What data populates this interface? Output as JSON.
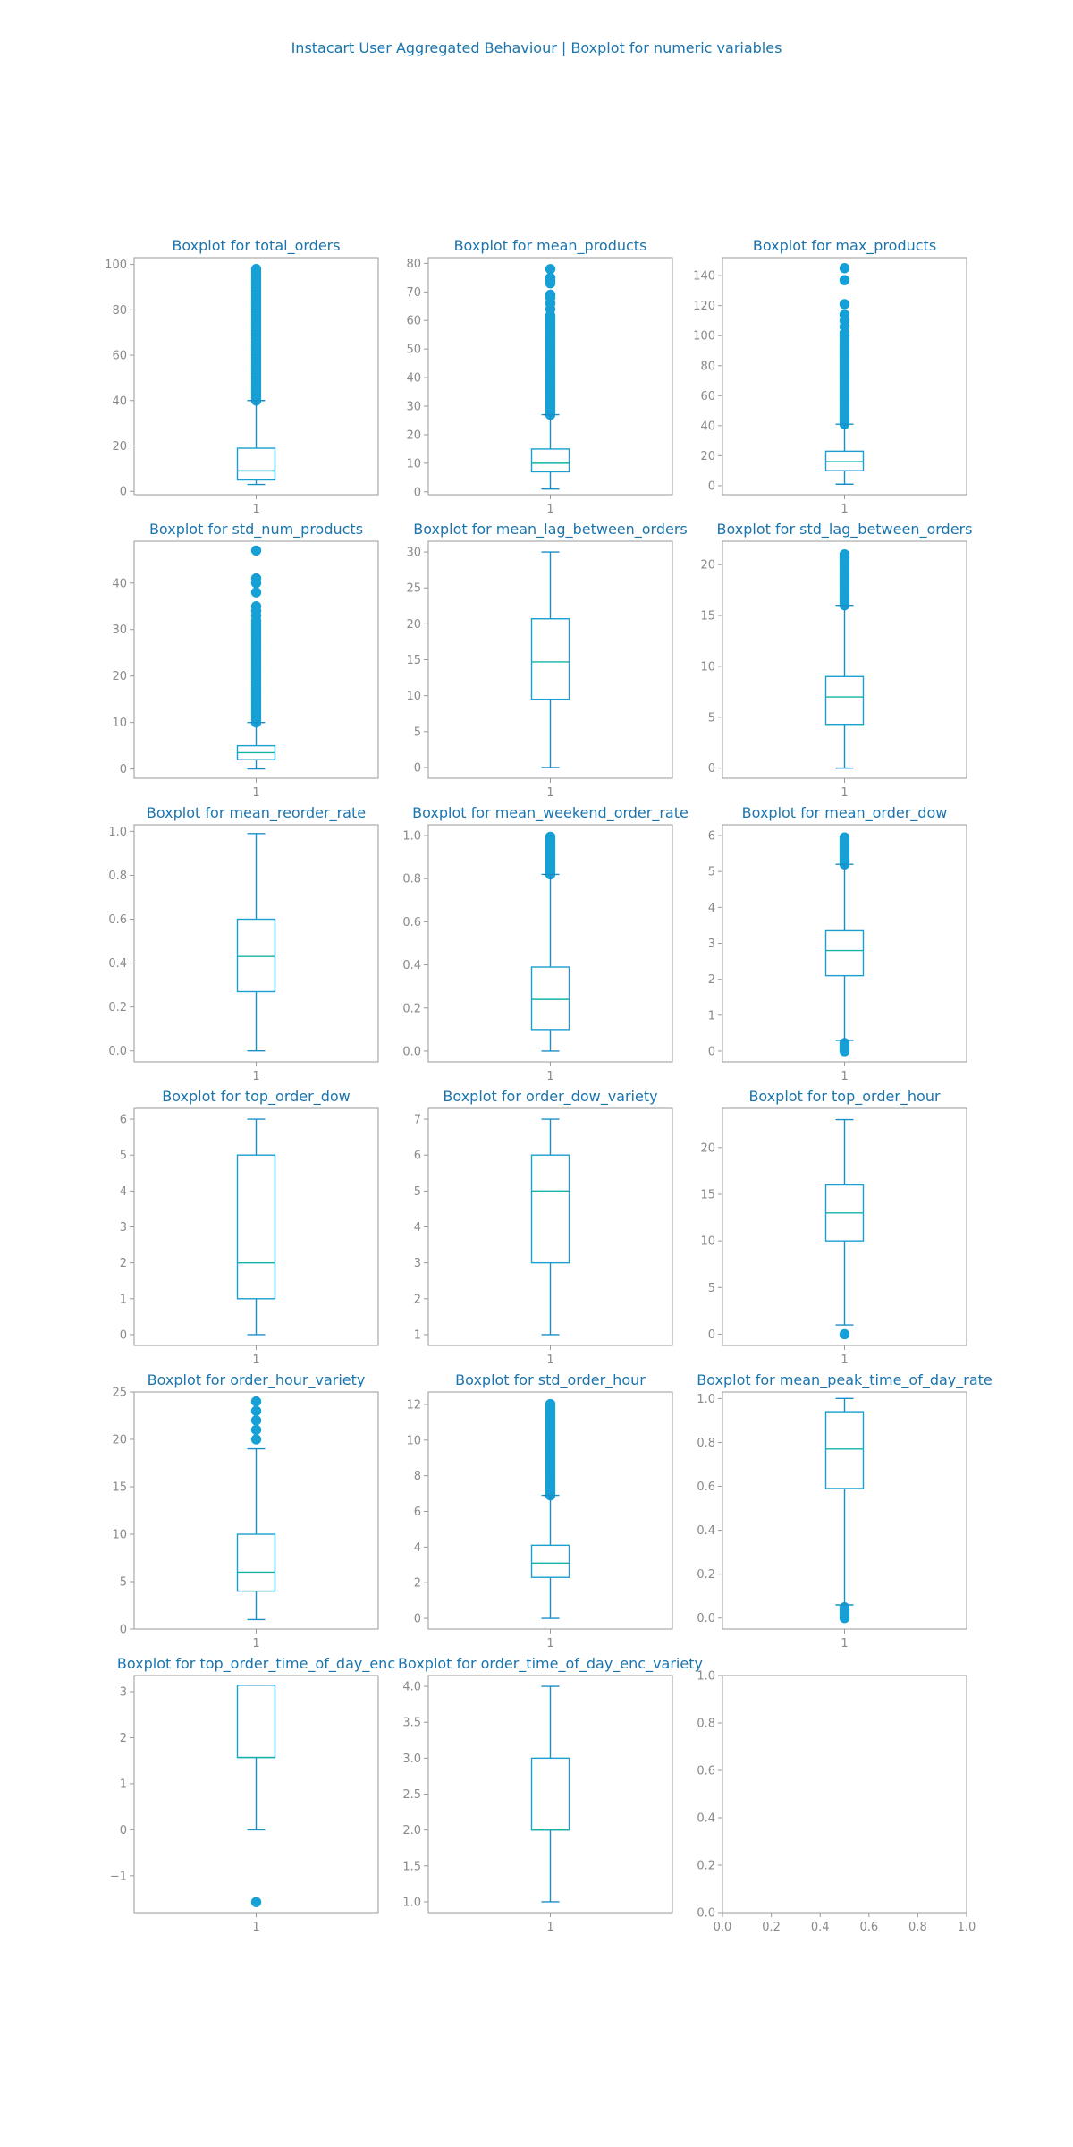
{
  "figure": {
    "suptitle": "Instacart User Aggregated Behaviour | Boxplot for numeric variables"
  },
  "colors": {
    "title": "#1a74ad",
    "box": "#1a9fd0",
    "median": "#13b3a8",
    "whisker": "#1a8fc7",
    "flier": "#16a0d6",
    "tick": "#8a8a8a",
    "frame": "#9a9a9a"
  },
  "chart_data": [
    {
      "type": "box",
      "title": "Boxplot for total_orders",
      "xticklabels": [
        "1"
      ],
      "ylim": [
        -1.5,
        103
      ],
      "yticks": [
        0,
        20,
        40,
        60,
        80,
        100
      ],
      "ytick_labels": [
        "0",
        "20",
        "40",
        "60",
        "80",
        "100"
      ],
      "whislo": 3,
      "q1": 5,
      "med": 9,
      "q3": 19,
      "whishi": 40,
      "fliers_range": [
        40,
        99
      ]
    },
    {
      "type": "box",
      "title": "Boxplot for mean_products",
      "xticklabels": [
        "1"
      ],
      "ylim": [
        -1,
        82
      ],
      "yticks": [
        0,
        10,
        20,
        30,
        40,
        50,
        60,
        70,
        80
      ],
      "ytick_labels": [
        "0",
        "10",
        "20",
        "30",
        "40",
        "50",
        "60",
        "70",
        "80"
      ],
      "whislo": 1,
      "q1": 7,
      "med": 10,
      "q3": 15,
      "whishi": 27,
      "fliers_range": [
        27,
        62
      ],
      "fliers": [
        64,
        66,
        68,
        69,
        73,
        74,
        75,
        78
      ]
    },
    {
      "type": "box",
      "title": "Boxplot for max_products",
      "xticklabels": [
        "1"
      ],
      "ylim": [
        -6,
        152
      ],
      "yticks": [
        0,
        20,
        40,
        60,
        80,
        100,
        120,
        140
      ],
      "ytick_labels": [
        "0",
        "20",
        "40",
        "60",
        "80",
        "100",
        "120",
        "140"
      ],
      "whislo": 1,
      "q1": 10,
      "med": 16,
      "q3": 23,
      "whishi": 41,
      "fliers_range": [
        41,
        103
      ],
      "fliers": [
        106,
        110,
        114,
        121,
        137,
        145
      ]
    },
    {
      "type": "box",
      "title": "Boxplot for std_num_products",
      "xticklabels": [
        "1"
      ],
      "ylim": [
        -2,
        49
      ],
      "yticks": [
        0,
        10,
        20,
        30,
        40
      ],
      "ytick_labels": [
        "0",
        "10",
        "20",
        "30",
        "40"
      ],
      "whislo": 0,
      "q1": 2,
      "med": 3.5,
      "q3": 5,
      "whishi": 10,
      "fliers_range": [
        10,
        32
      ],
      "fliers": [
        33,
        34,
        35,
        38,
        40,
        41,
        47
      ]
    },
    {
      "type": "box",
      "title": "Boxplot for mean_lag_between_orders",
      "xticklabels": [
        "1"
      ],
      "ylim": [
        -1.5,
        31.5
      ],
      "yticks": [
        0,
        5,
        10,
        15,
        20,
        25,
        30
      ],
      "ytick_labels": [
        "0",
        "5",
        "10",
        "15",
        "20",
        "25",
        "30"
      ],
      "whislo": 0,
      "q1": 9.5,
      "med": 14.7,
      "q3": 20.7,
      "whishi": 30,
      "fliers": []
    },
    {
      "type": "box",
      "title": "Boxplot for std_lag_between_orders",
      "xticklabels": [
        "1"
      ],
      "ylim": [
        -1,
        22.3
      ],
      "yticks": [
        0,
        5,
        10,
        15,
        20
      ],
      "ytick_labels": [
        "0",
        "5",
        "10",
        "15",
        "20"
      ],
      "whislo": 0,
      "q1": 4.3,
      "med": 7,
      "q3": 9,
      "whishi": 16,
      "fliers_range": [
        16,
        21.2
      ]
    },
    {
      "type": "box",
      "title": "Boxplot for mean_reorder_rate",
      "xticklabels": [
        "1"
      ],
      "ylim": [
        -0.05,
        1.03
      ],
      "yticks": [
        0,
        0.2,
        0.4,
        0.6,
        0.8,
        1.0
      ],
      "ytick_labels": [
        "0.0",
        "0.2",
        "0.4",
        "0.6",
        "0.8",
        "1.0"
      ],
      "whislo": 0,
      "q1": 0.27,
      "med": 0.43,
      "q3": 0.6,
      "whishi": 0.99,
      "fliers": []
    },
    {
      "type": "box",
      "title": "Boxplot for mean_weekend_order_rate",
      "xticklabels": [
        "1"
      ],
      "ylim": [
        -0.05,
        1.05
      ],
      "yticks": [
        0,
        0.2,
        0.4,
        0.6,
        0.8,
        1.0
      ],
      "ytick_labels": [
        "0.0",
        "0.2",
        "0.4",
        "0.6",
        "0.8",
        "1.0"
      ],
      "whislo": 0,
      "q1": 0.1,
      "med": 0.24,
      "q3": 0.39,
      "whishi": 0.82,
      "fliers_range": [
        0.82,
        1.0
      ]
    },
    {
      "type": "box",
      "title": "Boxplot for mean_order_dow",
      "xticklabels": [
        "1"
      ],
      "ylim": [
        -0.3,
        6.3
      ],
      "yticks": [
        0,
        1,
        2,
        3,
        4,
        5,
        6
      ],
      "ytick_labels": [
        "0",
        "1",
        "2",
        "3",
        "4",
        "5",
        "6"
      ],
      "whislo": 0.3,
      "q1": 2.1,
      "med": 2.8,
      "q3": 3.35,
      "whishi": 5.2,
      "fliers_range": [
        5.2,
        6.0
      ],
      "fliers_low_range": [
        0,
        0.25
      ]
    },
    {
      "type": "box",
      "title": "Boxplot for top_order_dow",
      "xticklabels": [
        "1"
      ],
      "ylim": [
        -0.3,
        6.3
      ],
      "yticks": [
        0,
        1,
        2,
        3,
        4,
        5,
        6
      ],
      "ytick_labels": [
        "0",
        "1",
        "2",
        "3",
        "4",
        "5",
        "6"
      ],
      "whislo": 0,
      "q1": 1,
      "med": 2,
      "q3": 5,
      "whishi": 6,
      "fliers": []
    },
    {
      "type": "box",
      "title": "Boxplot for order_dow_variety",
      "xticklabels": [
        "1"
      ],
      "ylim": [
        0.7,
        7.3
      ],
      "yticks": [
        1,
        2,
        3,
        4,
        5,
        6,
        7
      ],
      "ytick_labels": [
        "1",
        "2",
        "3",
        "4",
        "5",
        "6",
        "7"
      ],
      "whislo": 1,
      "q1": 3,
      "med": 5,
      "q3": 6,
      "whishi": 7,
      "fliers": []
    },
    {
      "type": "box",
      "title": "Boxplot for top_order_hour",
      "xticklabels": [
        "1"
      ],
      "ylim": [
        -1.2,
        24.2
      ],
      "yticks": [
        0,
        5,
        10,
        15,
        20
      ],
      "ytick_labels": [
        "0",
        "5",
        "10",
        "15",
        "20"
      ],
      "whislo": 1,
      "q1": 10,
      "med": 13,
      "q3": 16,
      "whishi": 23,
      "fliers": [
        0
      ]
    },
    {
      "type": "box",
      "title": "Boxplot for order_hour_variety",
      "xticklabels": [
        "1"
      ],
      "ylim": [
        0,
        25
      ],
      "yticks": [
        0,
        5,
        10,
        15,
        20,
        25
      ],
      "ytick_labels": [
        "0",
        "5",
        "10",
        "15",
        "20",
        "25"
      ],
      "whislo": 1,
      "q1": 4,
      "med": 6,
      "q3": 10,
      "whishi": 19,
      "fliers": [
        20,
        21,
        22,
        23,
        24
      ]
    },
    {
      "type": "box",
      "title": "Boxplot for std_order_hour",
      "xticklabels": [
        "1"
      ],
      "ylim": [
        -0.6,
        12.7
      ],
      "yticks": [
        0,
        2,
        4,
        6,
        8,
        10,
        12
      ],
      "ytick_labels": [
        "0",
        "2",
        "4",
        "6",
        "8",
        "10",
        "12"
      ],
      "whislo": 0,
      "q1": 2.3,
      "med": 3.1,
      "q3": 4.1,
      "whishi": 6.9,
      "fliers_range": [
        6.9,
        12.1
      ]
    },
    {
      "type": "box",
      "title": "Boxplot for mean_peak_time_of_day_rate",
      "xticklabels": [
        "1"
      ],
      "ylim": [
        -0.05,
        1.03
      ],
      "yticks": [
        0,
        0.2,
        0.4,
        0.6,
        0.8,
        1.0
      ],
      "ytick_labels": [
        "0.0",
        "0.2",
        "0.4",
        "0.6",
        "0.8",
        "1.0"
      ],
      "whislo": 0.06,
      "q1": 0.59,
      "med": 0.77,
      "q3": 0.94,
      "whishi": 1.0,
      "fliers_low_range": [
        0,
        0.06
      ]
    },
    {
      "type": "box",
      "title": "Boxplot for top_order_time_of_day_enc",
      "xticklabels": [
        "1"
      ],
      "ylim": [
        -1.8,
        3.35
      ],
      "yticks": [
        -1,
        0,
        1,
        2,
        3
      ],
      "ytick_labels": [
        "−1",
        "0",
        "1",
        "2",
        "3"
      ],
      "whislo": 0,
      "q1": 1.57,
      "med": 1.57,
      "q3": 3.14,
      "whishi": 3.14,
      "fliers": [
        -1.57
      ]
    },
    {
      "type": "box",
      "title": "Boxplot for order_time_of_day_enc_variety",
      "xticklabels": [
        "1"
      ],
      "ylim": [
        0.85,
        4.15
      ],
      "yticks": [
        1,
        1.5,
        2,
        2.5,
        3,
        3.5,
        4
      ],
      "ytick_labels": [
        "1.0",
        "1.5",
        "2.0",
        "2.5",
        "3.0",
        "3.5",
        "4.0"
      ],
      "whislo": 1,
      "q1": 2,
      "med": 2,
      "q3": 3,
      "whishi": 4,
      "fliers": []
    },
    {
      "type": "empty",
      "title": "",
      "xlim": [
        0,
        1
      ],
      "ylim": [
        0,
        1
      ],
      "xticks": [
        0,
        0.2,
        0.4,
        0.6,
        0.8,
        1.0
      ],
      "xtick_labels": [
        "0.0",
        "0.2",
        "0.4",
        "0.6",
        "0.8",
        "1.0"
      ],
      "yticks": [
        0,
        0.2,
        0.4,
        0.6,
        0.8,
        1.0
      ],
      "ytick_labels": [
        "0.0",
        "0.2",
        "0.4",
        "0.6",
        "0.8",
        "1.0"
      ]
    }
  ]
}
